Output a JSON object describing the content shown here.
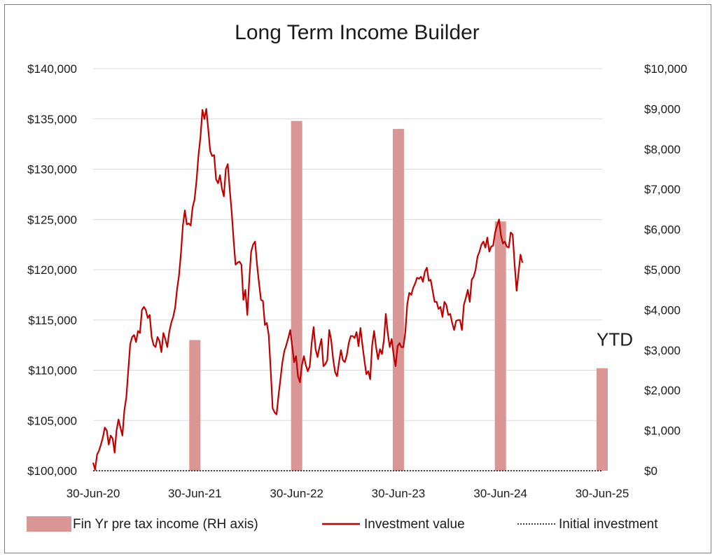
{
  "chart_data": {
    "type": "line",
    "title": "Long Term Income Builder",
    "x_axis": {
      "type": "date",
      "range": [
        "2020-06-30",
        "2025-06-30"
      ],
      "tick_labels": [
        "30-Jun-20",
        "30-Jun-21",
        "30-Jun-22",
        "30-Jun-23",
        "30-Jun-24",
        "30-Jun-25"
      ],
      "tick_dates": [
        "2020-06-30",
        "2021-06-30",
        "2022-06-30",
        "2023-06-30",
        "2024-06-30",
        "2025-06-30"
      ]
    },
    "y_left": {
      "range": [
        100000,
        140000
      ],
      "tick_labels": [
        "$100,000",
        "$105,000",
        "$110,000",
        "$115,000",
        "$120,000",
        "$125,000",
        "$130,000",
        "$135,000",
        "$140,000"
      ],
      "tick_values": [
        100000,
        105000,
        110000,
        115000,
        120000,
        125000,
        130000,
        135000,
        140000
      ]
    },
    "y_right": {
      "range": [
        0,
        10000
      ],
      "tick_labels": [
        "$0",
        "$1,000",
        "$2,000",
        "$3,000",
        "$4,000",
        "$5,000",
        "$6,000",
        "$7,000",
        "$8,000",
        "$9,000",
        "$10,000"
      ],
      "tick_values": [
        0,
        1000,
        2000,
        3000,
        4000,
        5000,
        6000,
        7000,
        8000,
        9000,
        10000
      ]
    },
    "grid": "horizontal",
    "legend_position": "bottom",
    "colors": {
      "bars": "#d99694",
      "line": "#c00000",
      "initial": "#404040",
      "grid": "#d9d9d9"
    },
    "series": [
      {
        "name": "Fin Yr pre tax income (RH axis)",
        "type": "bar",
        "axis": "right",
        "points": [
          {
            "date": "2021-06-30",
            "value": 3250
          },
          {
            "date": "2022-06-30",
            "value": 8700
          },
          {
            "date": "2023-06-30",
            "value": 8500
          },
          {
            "date": "2024-06-30",
            "value": 6200
          },
          {
            "date": "2025-06-30",
            "value": 2550
          }
        ]
      },
      {
        "name": "Investment value",
        "type": "line",
        "axis": "left",
        "points": [
          [
            "2020-06-30",
            100800
          ],
          [
            "2020-07-07",
            100100
          ],
          [
            "2020-07-14",
            101600
          ],
          [
            "2020-07-21",
            102000
          ],
          [
            "2020-07-28",
            102600
          ],
          [
            "2020-08-04",
            103300
          ],
          [
            "2020-08-11",
            104300
          ],
          [
            "2020-08-18",
            104000
          ],
          [
            "2020-08-25",
            102600
          ],
          [
            "2020-09-01",
            103500
          ],
          [
            "2020-09-08",
            103200
          ],
          [
            "2020-09-15",
            101800
          ],
          [
            "2020-09-22",
            104000
          ],
          [
            "2020-09-29",
            105100
          ],
          [
            "2020-10-06",
            104300
          ],
          [
            "2020-10-13",
            103500
          ],
          [
            "2020-10-20",
            106000
          ],
          [
            "2020-10-27",
            107300
          ],
          [
            "2020-11-03",
            110000
          ],
          [
            "2020-11-10",
            112600
          ],
          [
            "2020-11-17",
            113300
          ],
          [
            "2020-11-24",
            113500
          ],
          [
            "2020-12-01",
            112800
          ],
          [
            "2020-12-08",
            113900
          ],
          [
            "2020-12-15",
            113700
          ],
          [
            "2020-12-22",
            116000
          ],
          [
            "2020-12-29",
            116300
          ],
          [
            "2021-01-05",
            116000
          ],
          [
            "2021-01-12",
            115200
          ],
          [
            "2021-01-19",
            115500
          ],
          [
            "2021-01-26",
            113300
          ],
          [
            "2021-02-02",
            112500
          ],
          [
            "2021-02-09",
            112300
          ],
          [
            "2021-02-16",
            113300
          ],
          [
            "2021-02-23",
            112900
          ],
          [
            "2021-03-02",
            111800
          ],
          [
            "2021-03-09",
            113700
          ],
          [
            "2021-03-16",
            113100
          ],
          [
            "2021-03-23",
            112300
          ],
          [
            "2021-03-30",
            113800
          ],
          [
            "2021-04-06",
            114700
          ],
          [
            "2021-04-13",
            115300
          ],
          [
            "2021-04-20",
            116200
          ],
          [
            "2021-04-27",
            118000
          ],
          [
            "2021-05-04",
            119400
          ],
          [
            "2021-05-11",
            121600
          ],
          [
            "2021-05-18",
            124400
          ],
          [
            "2021-05-25",
            125900
          ],
          [
            "2021-06-01",
            124500
          ],
          [
            "2021-06-08",
            124600
          ],
          [
            "2021-06-15",
            124400
          ],
          [
            "2021-06-22",
            126200
          ],
          [
            "2021-06-29",
            127000
          ],
          [
            "2021-07-06",
            128900
          ],
          [
            "2021-07-13",
            131400
          ],
          [
            "2021-07-20",
            133200
          ],
          [
            "2021-07-27",
            135900
          ],
          [
            "2021-08-03",
            135000
          ],
          [
            "2021-08-10",
            136000
          ],
          [
            "2021-08-17",
            134000
          ],
          [
            "2021-08-24",
            131800
          ],
          [
            "2021-08-31",
            131300
          ],
          [
            "2021-09-07",
            131400
          ],
          [
            "2021-09-14",
            129000
          ],
          [
            "2021-09-21",
            128600
          ],
          [
            "2021-09-28",
            129400
          ],
          [
            "2021-10-05",
            128100
          ],
          [
            "2021-10-12",
            127300
          ],
          [
            "2021-10-19",
            130000
          ],
          [
            "2021-10-26",
            130500
          ],
          [
            "2021-11-02",
            128000
          ],
          [
            "2021-11-09",
            125700
          ],
          [
            "2021-11-16",
            122900
          ],
          [
            "2021-11-23",
            120500
          ],
          [
            "2021-11-30",
            120700
          ],
          [
            "2021-12-07",
            120800
          ],
          [
            "2021-12-14",
            120500
          ],
          [
            "2021-12-21",
            117000
          ],
          [
            "2021-12-28",
            118000
          ],
          [
            "2022-01-04",
            115500
          ],
          [
            "2022-01-11",
            119000
          ],
          [
            "2022-01-18",
            121800
          ],
          [
            "2022-01-25",
            122500
          ],
          [
            "2022-02-01",
            122800
          ],
          [
            "2022-02-08",
            120500
          ],
          [
            "2022-02-15",
            118700
          ],
          [
            "2022-02-22",
            117000
          ],
          [
            "2022-03-01",
            116900
          ],
          [
            "2022-03-08",
            114500
          ],
          [
            "2022-03-15",
            114700
          ],
          [
            "2022-03-22",
            113500
          ],
          [
            "2022-03-29",
            110000
          ],
          [
            "2022-04-05",
            106200
          ],
          [
            "2022-04-12",
            105800
          ],
          [
            "2022-04-19",
            105600
          ],
          [
            "2022-04-26",
            107500
          ],
          [
            "2022-05-03",
            109100
          ],
          [
            "2022-05-10",
            110800
          ],
          [
            "2022-05-17",
            111900
          ],
          [
            "2022-05-24",
            112500
          ],
          [
            "2022-05-31",
            113200
          ],
          [
            "2022-06-07",
            114000
          ],
          [
            "2022-06-14",
            112400
          ],
          [
            "2022-06-21",
            110800
          ],
          [
            "2022-06-28",
            111400
          ],
          [
            "2022-07-05",
            109400
          ],
          [
            "2022-07-12",
            108800
          ],
          [
            "2022-07-19",
            110500
          ],
          [
            "2022-07-26",
            111400
          ],
          [
            "2022-08-02",
            110500
          ],
          [
            "2022-08-09",
            109900
          ],
          [
            "2022-08-16",
            110400
          ],
          [
            "2022-08-23",
            112700
          ],
          [
            "2022-08-30",
            114300
          ],
          [
            "2022-09-06",
            112100
          ],
          [
            "2022-09-13",
            111300
          ],
          [
            "2022-09-20",
            112300
          ],
          [
            "2022-09-27",
            113100
          ],
          [
            "2022-10-04",
            110400
          ],
          [
            "2022-10-11",
            110600
          ],
          [
            "2022-10-18",
            111000
          ],
          [
            "2022-10-25",
            114000
          ],
          [
            "2022-11-01",
            113000
          ],
          [
            "2022-11-08",
            111100
          ],
          [
            "2022-11-15",
            109800
          ],
          [
            "2022-11-22",
            109400
          ],
          [
            "2022-11-29",
            110800
          ],
          [
            "2022-12-06",
            112000
          ],
          [
            "2022-12-13",
            111000
          ],
          [
            "2022-12-20",
            110800
          ],
          [
            "2022-12-27",
            111500
          ],
          [
            "2023-01-03",
            112700
          ],
          [
            "2023-01-10",
            113400
          ],
          [
            "2023-01-17",
            113400
          ],
          [
            "2023-01-24",
            113200
          ],
          [
            "2023-01-31",
            113800
          ],
          [
            "2023-02-07",
            112400
          ],
          [
            "2023-02-14",
            114200
          ],
          [
            "2023-02-21",
            112500
          ],
          [
            "2023-02-28",
            111000
          ],
          [
            "2023-03-07",
            109600
          ],
          [
            "2023-03-14",
            109900
          ],
          [
            "2023-03-21",
            109100
          ],
          [
            "2023-03-28",
            112500
          ],
          [
            "2023-04-04",
            113900
          ],
          [
            "2023-04-11",
            112300
          ],
          [
            "2023-04-18",
            111100
          ],
          [
            "2023-04-25",
            112100
          ],
          [
            "2023-05-02",
            111600
          ],
          [
            "2023-05-09",
            113000
          ],
          [
            "2023-05-16",
            115600
          ],
          [
            "2023-05-23",
            113700
          ],
          [
            "2023-05-30",
            112300
          ],
          [
            "2023-06-06",
            113100
          ],
          [
            "2023-06-13",
            111500
          ],
          [
            "2023-06-20",
            110400
          ],
          [
            "2023-06-27",
            112400
          ],
          [
            "2023-07-04",
            112700
          ],
          [
            "2023-07-11",
            112300
          ],
          [
            "2023-07-18",
            112300
          ],
          [
            "2023-07-25",
            113800
          ],
          [
            "2023-08-01",
            116600
          ],
          [
            "2023-08-08",
            117700
          ],
          [
            "2023-08-15",
            117500
          ],
          [
            "2023-08-22",
            118200
          ],
          [
            "2023-08-29",
            118600
          ],
          [
            "2023-09-05",
            119200
          ],
          [
            "2023-09-12",
            119100
          ],
          [
            "2023-09-19",
            119300
          ],
          [
            "2023-09-26",
            118800
          ],
          [
            "2023-10-03",
            119800
          ],
          [
            "2023-10-10",
            120200
          ],
          [
            "2023-10-17",
            118900
          ],
          [
            "2023-10-24",
            119000
          ],
          [
            "2023-10-31",
            117900
          ],
          [
            "2023-11-07",
            116800
          ],
          [
            "2023-11-14",
            116800
          ],
          [
            "2023-11-21",
            116100
          ],
          [
            "2023-11-28",
            116300
          ],
          [
            "2023-12-05",
            115300
          ],
          [
            "2023-12-12",
            116800
          ],
          [
            "2023-12-19",
            116500
          ],
          [
            "2023-12-26",
            115500
          ],
          [
            "2024-01-02",
            115600
          ],
          [
            "2024-01-09",
            114700
          ],
          [
            "2024-01-16",
            114000
          ],
          [
            "2024-01-23",
            114900
          ],
          [
            "2024-01-30",
            115000
          ],
          [
            "2024-02-06",
            115000
          ],
          [
            "2024-02-13",
            114000
          ],
          [
            "2024-02-20",
            116500
          ],
          [
            "2024-02-27",
            117200
          ],
          [
            "2024-03-05",
            118000
          ],
          [
            "2024-03-12",
            116800
          ],
          [
            "2024-03-19",
            119000
          ],
          [
            "2024-03-26",
            119300
          ],
          [
            "2024-04-02",
            120000
          ],
          [
            "2024-04-09",
            121300
          ],
          [
            "2024-04-16",
            121800
          ],
          [
            "2024-04-23",
            122500
          ],
          [
            "2024-04-30",
            122800
          ],
          [
            "2024-05-07",
            122200
          ],
          [
            "2024-05-14",
            123200
          ],
          [
            "2024-05-21",
            121800
          ],
          [
            "2024-05-28",
            122300
          ],
          [
            "2024-06-04",
            122400
          ],
          [
            "2024-06-11",
            123700
          ],
          [
            "2024-06-18",
            124400
          ],
          [
            "2024-06-25",
            125000
          ],
          [
            "2024-07-02",
            123400
          ],
          [
            "2024-07-09",
            122600
          ],
          [
            "2024-07-16",
            122800
          ],
          [
            "2024-07-23",
            122300
          ],
          [
            "2024-07-30",
            122200
          ],
          [
            "2024-08-06",
            123700
          ],
          [
            "2024-08-13",
            123500
          ],
          [
            "2024-08-20",
            120500
          ],
          [
            "2024-08-27",
            117900
          ],
          [
            "2024-09-03",
            119700
          ],
          [
            "2024-09-10",
            121500
          ],
          [
            "2024-09-17",
            120700
          ]
        ]
      },
      {
        "name": "Initial investment",
        "type": "line",
        "style": "dotted",
        "axis": "left",
        "value": 100000
      }
    ],
    "annotations": [
      {
        "text": "YTD",
        "date": "2025-06-30",
        "value": 2550
      }
    ]
  }
}
